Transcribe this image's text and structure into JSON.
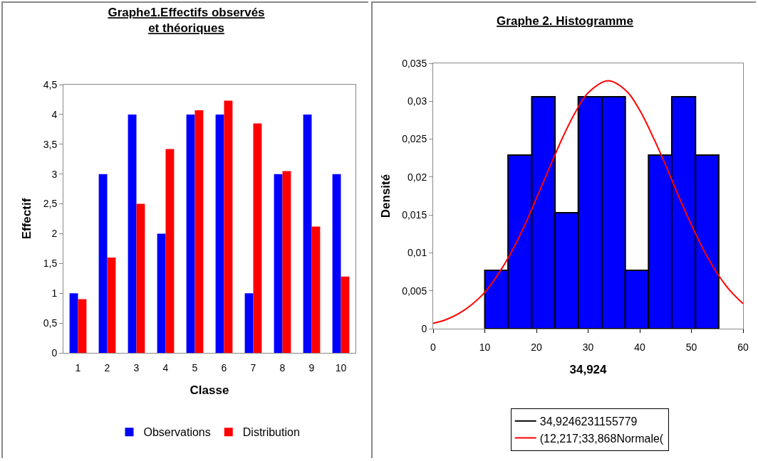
{
  "chart_data": [
    {
      "type": "bar",
      "title": "Graphe1.Effectifs observés et théoriques",
      "xlabel": "Classe",
      "ylabel": "Effectif",
      "categories": [
        "1",
        "2",
        "3",
        "4",
        "5",
        "6",
        "7",
        "8",
        "9",
        "10"
      ],
      "series": [
        {
          "name": "Observations",
          "color": "#0000ff",
          "values": [
            1,
            3,
            4,
            2,
            4,
            4,
            1,
            3,
            4,
            3
          ]
        },
        {
          "name": "Distribution",
          "color": "#ff0000",
          "values": [
            0.9,
            1.6,
            2.5,
            3.42,
            4.07,
            4.23,
            3.85,
            3.05,
            2.12,
            1.28
          ]
        }
      ],
      "ylim": [
        0,
        4.5
      ],
      "yticks": [
        0,
        {
          "value": 0.5,
          "label": "0,5"
        },
        1,
        {
          "value": 1.5,
          "label": "1,5"
        },
        2,
        {
          "value": 2.5,
          "label": "2,5"
        },
        3,
        {
          "value": 3.5,
          "label": "3,5"
        },
        4,
        {
          "value": 4.5,
          "label": "4,5"
        }
      ],
      "grid": false,
      "legend": "bottom"
    },
    {
      "type": "histogram",
      "title": "Graphe 2. Histogramme",
      "xlabel": "34,924",
      "ylabel": "Densité",
      "series": [
        {
          "type": "histogram",
          "color": "#0000ff",
          "bins": [
            10,
            14.5,
            19.1,
            23.6,
            28.1,
            32.7,
            37.2,
            41.7,
            46.2,
            50.8,
            55.3
          ],
          "values": [
            0.0077,
            0.0229,
            0.0306,
            0.0153,
            0.0306,
            0.0306,
            0.0077,
            0.0229,
            0.0306,
            0.0229
          ]
        },
        {
          "type": "line",
          "name": "34,9246231155779",
          "color": "#000000"
        },
        {
          "type": "line",
          "name": "(12,217;33,868Normale(",
          "color": "#ff0000",
          "x": [
            0,
            2.5,
            5,
            7.5,
            10,
            12.5,
            15,
            17.5,
            20,
            22.5,
            25,
            27.5,
            30,
            33.9,
            37.5,
            40,
            42.5,
            45,
            47.5,
            50,
            52.5,
            55,
            57.5,
            60
          ],
          "values": [
            0.0007,
            0.0012,
            0.002,
            0.0032,
            0.0048,
            0.0071,
            0.0099,
            0.0133,
            0.0172,
            0.0212,
            0.0251,
            0.0285,
            0.0311,
            0.0327,
            0.0313,
            0.0288,
            0.0254,
            0.0216,
            0.0175,
            0.0137,
            0.0102,
            0.0073,
            0.005,
            0.0033
          ]
        }
      ],
      "xlim": [
        0,
        60
      ],
      "xticks": [
        0,
        10,
        20,
        30,
        40,
        50,
        60
      ],
      "ylim": [
        0,
        0.035
      ],
      "yticks": [
        0,
        {
          "value": 0.005,
          "label": "0,005"
        },
        {
          "value": 0.01,
          "label": "0,01"
        },
        {
          "value": 0.015,
          "label": "0,015"
        },
        {
          "value": 0.02,
          "label": "0,02"
        },
        {
          "value": 0.025,
          "label": "0,025"
        },
        {
          "value": 0.03,
          "label": "0,03"
        },
        {
          "value": 0.035,
          "label": "0,035"
        }
      ],
      "grid": false,
      "legend": "bottom"
    }
  ]
}
